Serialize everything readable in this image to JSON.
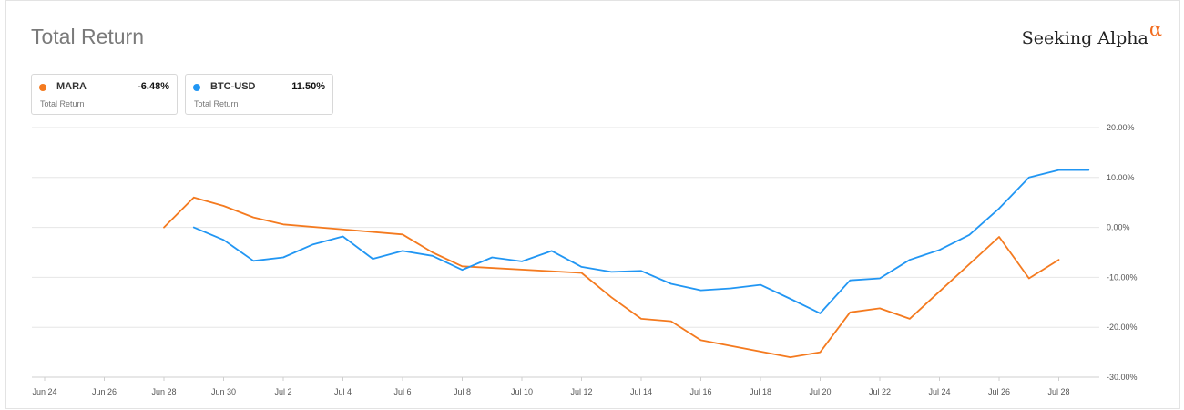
{
  "header": {
    "title": "Total Return",
    "brand_name": "Seeking Alpha",
    "brand_symbol": "α",
    "brand_color": "#f26b1d"
  },
  "legend": [
    {
      "name": "MARA",
      "value": "-6.48%",
      "sub": "Total Return",
      "color": "#f47a1f"
    },
    {
      "name": "BTC-USD",
      "value": "11.50%",
      "sub": "Total Return",
      "color": "#2196f3"
    }
  ],
  "chart_data": {
    "type": "line",
    "title": "Total Return",
    "x_ticks": [
      "Jun 24",
      "Jun 26",
      "Jun 28",
      "Jun 30",
      "Jul 2",
      "Jul 4",
      "Jul 6",
      "Jul 8",
      "Jul 10",
      "Jul 12",
      "Jul 14",
      "Jul 16",
      "Jul 18",
      "Jul 20",
      "Jul 22",
      "Jul 24",
      "Jul 26",
      "Jul 28"
    ],
    "y_ticks": [
      "20.00%",
      "10.00%",
      "0.00%",
      "-10.00%",
      "-20.00%",
      "-30.00%"
    ],
    "y_tick_values": [
      20,
      10,
      0,
      -10,
      -20,
      -30
    ],
    "ylim": [
      -30,
      20
    ],
    "grid": true,
    "y_axis_position": "right",
    "series": [
      {
        "name": "MARA",
        "color": "#f47a1f",
        "points": [
          {
            "x": "Jun 28",
            "y": 0.0
          },
          {
            "x": "Jun 29",
            "y": 6.0
          },
          {
            "x": "Jun 30",
            "y": 4.3
          },
          {
            "x": "Jul 1",
            "y": 2.0
          },
          {
            "x": "Jul 2",
            "y": 0.6
          },
          {
            "x": "Jul 6",
            "y": -1.4
          },
          {
            "x": "Jul 7",
            "y": -5.0
          },
          {
            "x": "Jul 8",
            "y": -7.8
          },
          {
            "x": "Jul 12",
            "y": -9.1
          },
          {
            "x": "Jul 13",
            "y": -14.0
          },
          {
            "x": "Jul 14",
            "y": -18.3
          },
          {
            "x": "Jul 15",
            "y": -18.8
          },
          {
            "x": "Jul 16",
            "y": -22.6
          },
          {
            "x": "Jul 19",
            "y": -26.0
          },
          {
            "x": "Jul 20",
            "y": -25.0
          },
          {
            "x": "Jul 21",
            "y": -17.0
          },
          {
            "x": "Jul 22",
            "y": -16.2
          },
          {
            "x": "Jul 23",
            "y": -18.3
          },
          {
            "x": "Jul 26",
            "y": -1.9
          },
          {
            "x": "Jul 27",
            "y": -10.2
          },
          {
            "x": "Jul 28",
            "y": -6.48
          }
        ]
      },
      {
        "name": "BTC-USD",
        "color": "#2196f3",
        "points": [
          {
            "x": "Jun 29",
            "y": 0.0
          },
          {
            "x": "Jun 30",
            "y": -2.5
          },
          {
            "x": "Jul 1",
            "y": -6.7
          },
          {
            "x": "Jul 2",
            "y": -6.0
          },
          {
            "x": "Jul 3",
            "y": -3.4
          },
          {
            "x": "Jul 4",
            "y": -1.8
          },
          {
            "x": "Jul 5",
            "y": -6.3
          },
          {
            "x": "Jul 6",
            "y": -4.7
          },
          {
            "x": "Jul 7",
            "y": -5.7
          },
          {
            "x": "Jul 8",
            "y": -8.5
          },
          {
            "x": "Jul 9",
            "y": -6.0
          },
          {
            "x": "Jul 10",
            "y": -6.8
          },
          {
            "x": "Jul 11",
            "y": -4.7
          },
          {
            "x": "Jul 12",
            "y": -7.9
          },
          {
            "x": "Jul 13",
            "y": -8.9
          },
          {
            "x": "Jul 14",
            "y": -8.7
          },
          {
            "x": "Jul 15",
            "y": -11.3
          },
          {
            "x": "Jul 16",
            "y": -12.6
          },
          {
            "x": "Jul 17",
            "y": -12.2
          },
          {
            "x": "Jul 18",
            "y": -11.5
          },
          {
            "x": "Jul 19",
            "y": -14.3
          },
          {
            "x": "Jul 20",
            "y": -17.2
          },
          {
            "x": "Jul 21",
            "y": -10.6
          },
          {
            "x": "Jul 22",
            "y": -10.2
          },
          {
            "x": "Jul 23",
            "y": -6.5
          },
          {
            "x": "Jul 24",
            "y": -4.5
          },
          {
            "x": "Jul 25",
            "y": -1.5
          },
          {
            "x": "Jul 26",
            "y": 3.8
          },
          {
            "x": "Jul 27",
            "y": 10.0
          },
          {
            "x": "Jul 28",
            "y": 11.5
          },
          {
            "x": "Jul 29",
            "y": 11.5
          }
        ]
      }
    ]
  }
}
